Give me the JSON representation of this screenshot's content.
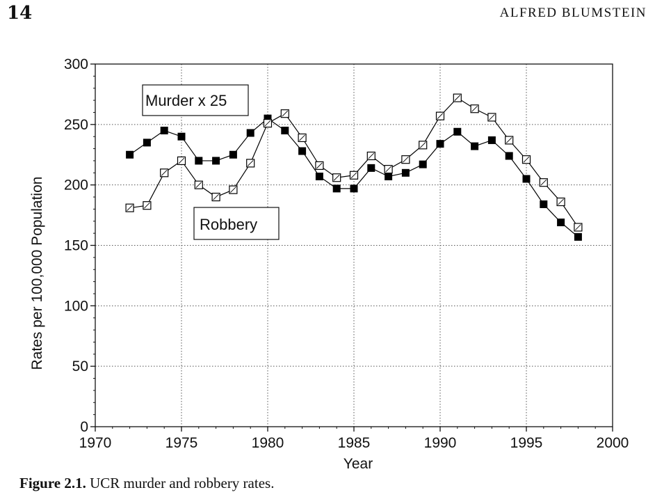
{
  "page": {
    "number": "14",
    "running_head": "ALFRED BLUMSTEIN"
  },
  "caption": {
    "label": "Figure 2.1.",
    "text": "UCR murder and robbery rates."
  },
  "chart_data": {
    "type": "line",
    "title": "",
    "xlabel": "Year",
    "ylabel": "Rates per 100,000 Population",
    "xlim": [
      1970,
      2000
    ],
    "ylim": [
      0,
      300
    ],
    "xticks": [
      1970,
      1975,
      1980,
      1985,
      1990,
      1995,
      2000
    ],
    "yticks": [
      0,
      50,
      100,
      150,
      200,
      250,
      300
    ],
    "grid": true,
    "x": [
      1972,
      1973,
      1974,
      1975,
      1976,
      1977,
      1978,
      1979,
      1980,
      1981,
      1982,
      1983,
      1984,
      1985,
      1986,
      1987,
      1988,
      1989,
      1990,
      1991,
      1992,
      1993,
      1994,
      1995,
      1996,
      1997,
      1998
    ],
    "series": [
      {
        "name": "Murder x 25",
        "marker": "filled-square",
        "color": "#000000",
        "values": [
          225,
          235,
          245,
          240,
          220,
          220,
          225,
          243,
          255,
          245,
          228,
          207,
          197,
          197,
          214,
          207,
          210,
          217,
          234,
          244,
          232,
          237,
          224,
          205,
          184,
          169,
          157
        ]
      },
      {
        "name": "Robbery",
        "marker": "open-square",
        "color": "#000000",
        "values": [
          181,
          183,
          210,
          220,
          200,
          190,
          196,
          218,
          251,
          259,
          239,
          216,
          206,
          208,
          224,
          213,
          221,
          233,
          257,
          272,
          263,
          256,
          237,
          221,
          202,
          186,
          165
        ]
      }
    ],
    "annotations": [
      {
        "text": "Murder x 25",
        "series": "Murder x 25"
      },
      {
        "text": "Robbery",
        "series": "Robbery"
      }
    ]
  }
}
